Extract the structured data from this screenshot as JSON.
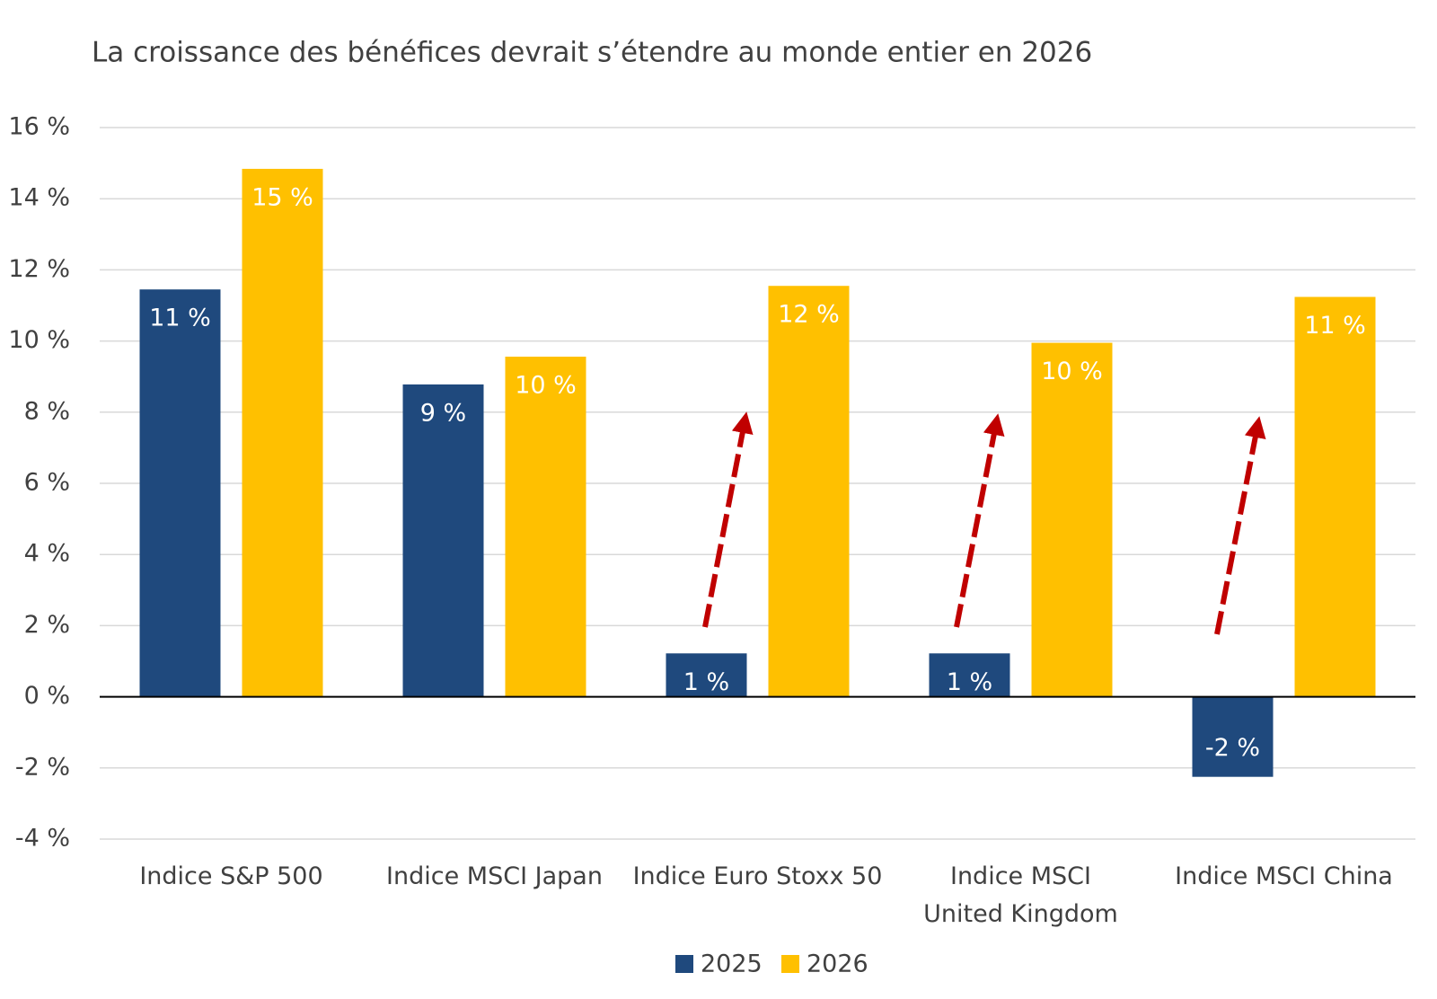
{
  "chart_data": {
    "type": "bar",
    "title": "La croissance des bénéfices devrait s’étendre au monde entier en 2026",
    "categories": [
      "Indice S&P 500",
      "Indice MSCI Japan",
      "Indice Euro Stoxx 50",
      "Indice MSCI\nUnited Kingdom",
      "Indice MSCI China"
    ],
    "series": [
      {
        "name": "2025",
        "color": "#1f497d",
        "values": [
          11.45,
          8.78,
          1.22,
          1.22,
          -2.25
        ],
        "value_labels": [
          "11 %",
          "9 %",
          "1 %",
          "1 %",
          "-2 %"
        ]
      },
      {
        "name": "2026",
        "color": "#ffc000",
        "values": [
          14.84,
          9.56,
          11.55,
          9.95,
          11.24
        ],
        "value_labels": [
          "15 %",
          "10 %",
          "12 %",
          "10 %",
          "11 %"
        ]
      }
    ],
    "ylim": [
      -4,
      16
    ],
    "yticks": [
      {
        "value": -4,
        "label": "-4 %"
      },
      {
        "value": -2,
        "label": "-2 %"
      },
      {
        "value": 0,
        "label": "0 %"
      },
      {
        "value": 2,
        "label": "2 %"
      },
      {
        "value": 4,
        "label": "4 %"
      },
      {
        "value": 6,
        "label": "6 %"
      },
      {
        "value": 8,
        "label": "8 %"
      },
      {
        "value": 10,
        "label": "10 %"
      },
      {
        "value": 12,
        "label": "12 %"
      },
      {
        "value": 14,
        "label": "14 %"
      },
      {
        "value": 16,
        "label": "16 %"
      }
    ],
    "grid": true
  }
}
